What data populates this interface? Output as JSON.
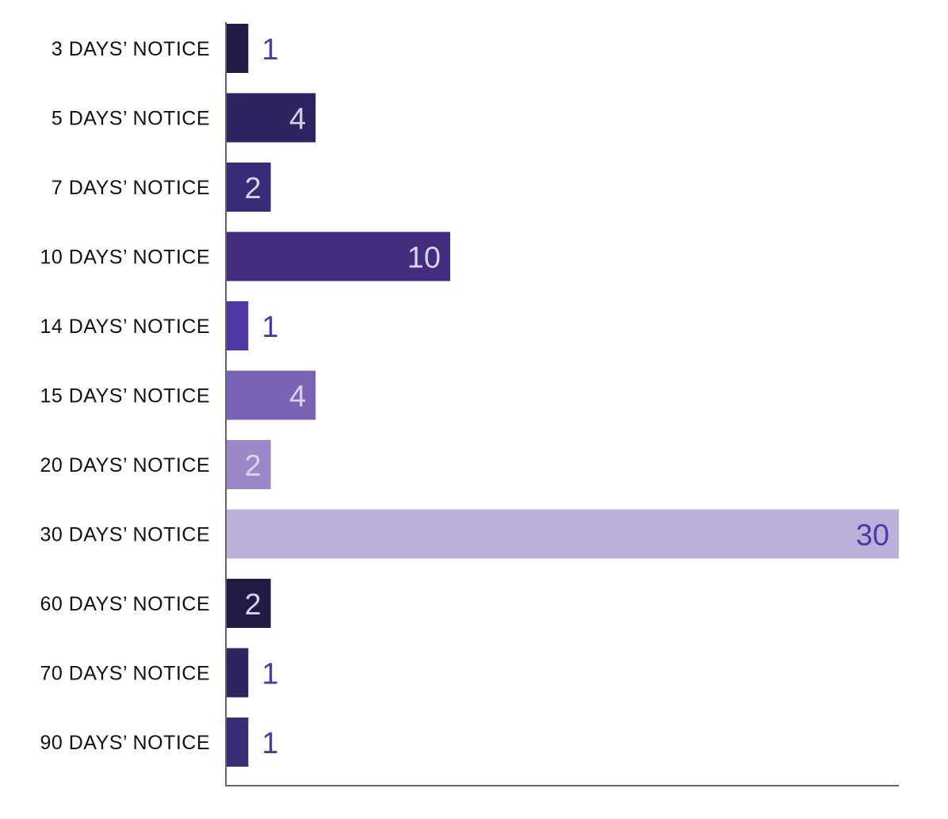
{
  "chart_data": {
    "type": "bar",
    "orientation": "horizontal",
    "categories": [
      "3 DAYS’ NOTICE",
      "5 DAYS’ NOTICE",
      "7 DAYS’ NOTICE",
      "10 DAYS’ NOTICE",
      "14 DAYS’ NOTICE",
      "15 DAYS’ NOTICE",
      "20 DAYS’ NOTICE",
      "30 DAYS’ NOTICE",
      "60 DAYS’ NOTICE",
      "70 DAYS’ NOTICE",
      "90 DAYS’ NOTICE"
    ],
    "values": [
      1,
      4,
      2,
      10,
      1,
      4,
      2,
      30,
      2,
      1,
      1
    ],
    "bar_colors": [
      "#221a45",
      "#2f2460",
      "#3a2b76",
      "#412c7e",
      "#5038a5",
      "#7a62b5",
      "#9a89c6",
      "#bab0da",
      "#221a45",
      "#2f2460",
      "#3a2b76"
    ],
    "value_label_inside_color": "#d8d2ec",
    "value_label_inside_dark_color": "#5038a5",
    "value_label_outside_color": "#5038a5",
    "xlim": [
      0,
      30
    ],
    "title": "",
    "xlabel": "",
    "ylabel": "",
    "grid": false,
    "legend": "none"
  }
}
